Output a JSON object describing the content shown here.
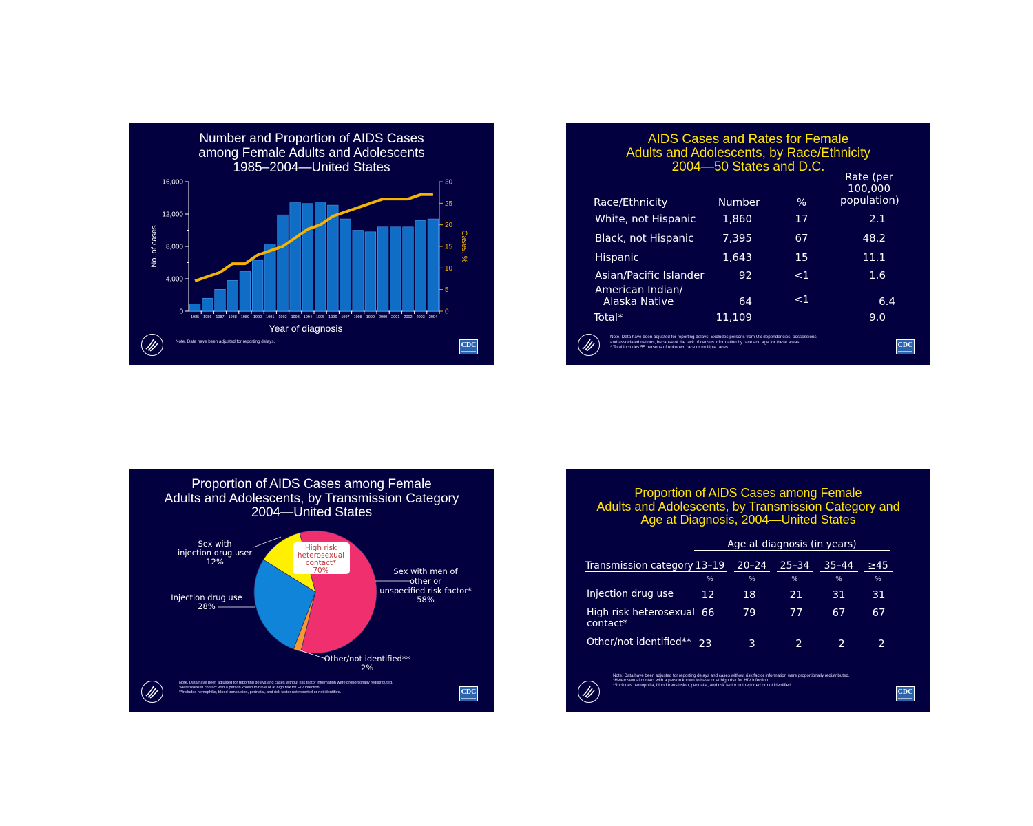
{
  "slide1": {
    "title_lines": [
      "Number and Proportion of AIDS Cases",
      "among Female Adults and Adolescents",
      "1985–2004—United States"
    ],
    "note": "Note. Data have been adjusted for reporting delays.",
    "cdc_logo": "CDC",
    "colors": {
      "bar": "#0f6dc6",
      "line": "#f5b400",
      "right_axis": "#f5b400"
    },
    "chart_data": {
      "type": "bar+line",
      "categories": [
        "1985",
        "1986",
        "1987",
        "1988",
        "1989",
        "1990",
        "1991",
        "1992",
        "1993",
        "1994",
        "1995",
        "1996",
        "1997",
        "1998",
        "1999",
        "2000",
        "2001",
        "2002",
        "2003",
        "2004"
      ],
      "series": [
        {
          "name": "",
          "axis": "left",
          "values": [
            900,
            1600,
            2700,
            3800,
            4900,
            6300,
            8300,
            11900,
            13400,
            13300,
            13500,
            13100,
            11400,
            10000,
            9800,
            10400,
            10400,
            10400,
            11200,
            11400
          ]
        },
        {
          "name": "",
          "axis": "right",
          "values": [
            7,
            8,
            9,
            11,
            11,
            13,
            14,
            15,
            17,
            19,
            20,
            22,
            23,
            24,
            25,
            26,
            26,
            26,
            27,
            27
          ]
        }
      ],
      "xlabel": "Year of diagnosis",
      "ylabel": "No. of cases",
      "y2label": "Cases, %",
      "ylim": [
        0,
        16000
      ],
      "y2lim": [
        0,
        30
      ],
      "yticks": [
        "0",
        "4,000",
        "8,000",
        "12,000",
        "16,000"
      ],
      "y2ticks": [
        "0",
        "5",
        "10",
        "15",
        "20",
        "25",
        "30"
      ],
      "grid": false,
      "legend": "none"
    }
  },
  "slide2": {
    "title_lines": [
      "AIDS Cases and Rates for Female",
      "Adults and Adolescents, by Race/Ethnicity",
      "2004—50 States and D.C."
    ],
    "headers": {
      "race": "Race/Ethnicity",
      "number": "Number",
      "pct": "%",
      "rate_lines": [
        "Rate (per",
        "100,000",
        "population)"
      ]
    },
    "rows": [
      {
        "label": [
          "White, not Hispanic"
        ],
        "number": "1,860",
        "pct": "17",
        "rate": "2.1"
      },
      {
        "label": [
          "Black, not Hispanic"
        ],
        "number": "7,395",
        "pct": "67",
        "rate": "48.2"
      },
      {
        "label": [
          "Hispanic"
        ],
        "number": "1,643",
        "pct": "15",
        "rate": "11.1"
      },
      {
        "label": [
          "Asian/Pacific Islander"
        ],
        "number": "92",
        "pct": "<1",
        "rate": "1.6"
      },
      {
        "label": [
          "American Indian/",
          "Alaska Native"
        ],
        "number": "64",
        "pct": "<1",
        "rate": "6.4"
      }
    ],
    "total": {
      "label": "Total*",
      "number": "11,109",
      "rate": "9.0"
    },
    "note_lines": [
      "Note. Data have been adjusted for reporting delays. Excludes persons from US dependencies, possessions",
      "and associated nations, because of the lack of census information by race and age for these areas.",
      "* Total includes 55 persons of unknown race or multiple races."
    ],
    "cdc_logo": "CDC"
  },
  "slide3": {
    "title_lines": [
      "Proportion of AIDS Cases among Female",
      "Adults and Adolescents, by Transmission Category",
      "2004—United States"
    ],
    "colors": {
      "hetero": "#f0306e",
      "idu": "#0f84d8",
      "sex_idu": "#fff000",
      "other": "#f59a30"
    },
    "chart_data": {
      "type": "pie",
      "slices": [
        {
          "label_lines": [
            "High risk",
            "heterosexual",
            "contact*"
          ],
          "value": 70,
          "pct_label": "70%"
        },
        {
          "label_lines": [
            "Sex with men of",
            "other or",
            "unspecified risk factor*"
          ],
          "value": 58,
          "pct_label": "58%"
        },
        {
          "label_lines": [
            "Other/not identified**"
          ],
          "value": 2,
          "pct_label": "2%"
        },
        {
          "label_lines": [
            "Injection drug use"
          ],
          "value": 28,
          "pct_label": "28%"
        },
        {
          "label_lines": [
            "Sex with",
            "injection drug user"
          ],
          "value": 12,
          "pct_label": "12%"
        }
      ],
      "legend": "none"
    },
    "note_lines": [
      "Note. Data have been adjusted for reporting delays and cases without risk factor information were proportionally redistributed.",
      "*Heterosexual contact with a person known to have or at high risk for HIV infection.",
      "**Includes hemophilia, blood transfusion, perinatal, and risk factor not reported or not identified."
    ],
    "cdc_logo": "CDC"
  },
  "slide4": {
    "title_lines": [
      "Proportion of AIDS Cases among Female",
      "Adults and Adolescents, by Transmission Category and",
      "Age at Diagnosis, 2004—United States"
    ],
    "age_header": "Age at diagnosis (in years)",
    "category_header": "Transmission category",
    "age_groups": [
      "13–19",
      "20–24",
      "25–34",
      "35–44",
      "≥45"
    ],
    "unit": "%",
    "rows": [
      {
        "label": [
          "Injection drug use"
        ],
        "values": [
          "12",
          "18",
          "21",
          "31",
          "31"
        ]
      },
      {
        "label": [
          "High risk heterosexual",
          "contact*"
        ],
        "values": [
          "66",
          "79",
          "77",
          "67",
          "67"
        ]
      },
      {
        "label": [
          "Other/not identified**"
        ],
        "values": [
          "23",
          "3",
          "2",
          "2",
          "2"
        ]
      }
    ],
    "note_lines": [
      "Note. Data have been adjusted for reporting delays and cases without risk factor information were proportionally redistributed.",
      "*Heterosexual contact with a person known to have or at high risk for HIV infection.",
      "**Includes hemophilia, blood transfusion, perinatal, and risk factor not reported or not identified."
    ],
    "cdc_logo": "CDC"
  }
}
